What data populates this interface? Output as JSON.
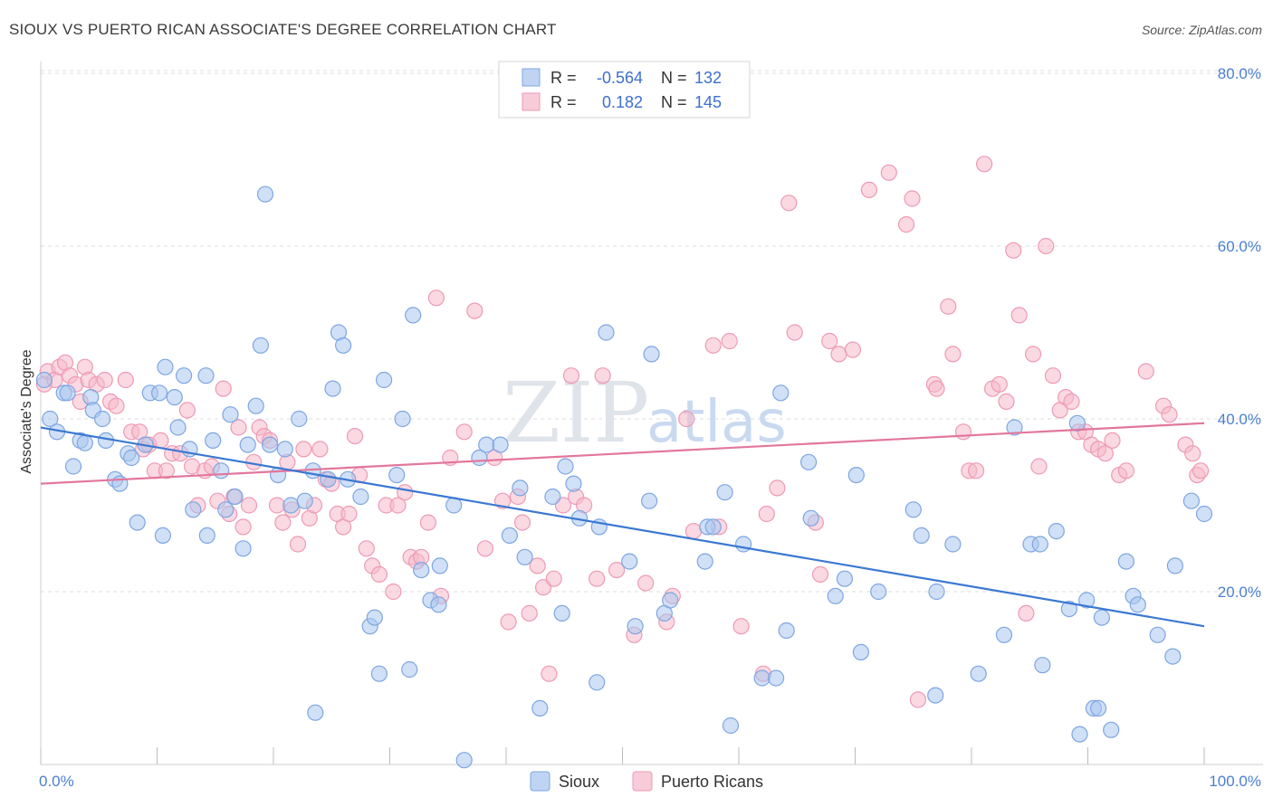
{
  "title": "SIOUX VS PUERTO RICAN ASSOCIATE'S DEGREE CORRELATION CHART",
  "source": "Source: ZipAtlas.com",
  "watermark": {
    "zip": "ZIP",
    "atlas": "atlas"
  },
  "colors": {
    "sioux_fill": "#a9c6ef",
    "sioux_stroke": "#7ea6e2",
    "sioux_line": "#3a78d2",
    "pr_fill": "#f6b9cb",
    "pr_stroke": "#ee9ab4",
    "pr_line": "#e2779c",
    "tick_text": "#4a7fd0",
    "grid": "#dcdcdc"
  },
  "legend": {
    "rows": [
      {
        "r_label": "R =",
        "r_value": "-0.564",
        "n_label": "N =",
        "n_value": "132"
      },
      {
        "r_label": "R =",
        "r_value": "0.182",
        "n_label": "N =",
        "n_value": "145"
      }
    ]
  },
  "chart_data": {
    "type": "scatter",
    "title": "SIOUX VS PUERTO RICAN ASSOCIATE'S DEGREE CORRELATION CHART",
    "xlabel": "",
    "ylabel": "Associate's Degree",
    "xlim": [
      0,
      100
    ],
    "ylim": [
      0,
      85
    ],
    "x_tick_labels": [
      "0.0%",
      "100.0%"
    ],
    "y_ticks": [
      20,
      40,
      60,
      80
    ],
    "y_tick_labels": [
      "20.0%",
      "40.0%",
      "60.0%",
      "80.0%"
    ],
    "grid": "horizontal dashed",
    "legend_position": "top-center",
    "series": [
      {
        "name": "Sioux",
        "r": -0.564,
        "n": 132,
        "trend": [
          [
            0,
            39.0
          ],
          [
            100,
            16.0
          ]
        ],
        "points": [
          [
            0.3,
            44.5
          ],
          [
            0.8,
            40.0
          ],
          [
            1.4,
            38.5
          ],
          [
            2.0,
            43.0
          ],
          [
            2.3,
            43.0
          ],
          [
            2.8,
            34.5
          ],
          [
            3.4,
            37.5
          ],
          [
            3.8,
            37.2
          ],
          [
            4.3,
            42.5
          ],
          [
            4.5,
            41.0
          ],
          [
            5.3,
            40.0
          ],
          [
            5.6,
            37.5
          ],
          [
            6.4,
            33.0
          ],
          [
            6.8,
            32.5
          ],
          [
            7.5,
            36.0
          ],
          [
            7.8,
            35.5
          ],
          [
            8.3,
            28.0
          ],
          [
            9.0,
            37.0
          ],
          [
            9.4,
            43.0
          ],
          [
            10.2,
            43.0
          ],
          [
            10.5,
            26.5
          ],
          [
            10.7,
            46.0
          ],
          [
            11.5,
            42.5
          ],
          [
            11.8,
            39.0
          ],
          [
            12.3,
            45.0
          ],
          [
            12.8,
            36.5
          ],
          [
            13.1,
            29.5
          ],
          [
            14.2,
            45.0
          ],
          [
            14.3,
            26.5
          ],
          [
            14.8,
            37.5
          ],
          [
            15.5,
            34.0
          ],
          [
            15.9,
            29.5
          ],
          [
            16.3,
            40.5
          ],
          [
            16.7,
            31.0
          ],
          [
            17.4,
            25.0
          ],
          [
            17.8,
            37.0
          ],
          [
            18.5,
            41.5
          ],
          [
            18.9,
            48.5
          ],
          [
            19.3,
            66.0
          ],
          [
            19.7,
            37.0
          ],
          [
            20.4,
            33.5
          ],
          [
            21.0,
            36.5
          ],
          [
            21.5,
            30.0
          ],
          [
            22.2,
            40.0
          ],
          [
            22.7,
            30.5
          ],
          [
            23.4,
            34.0
          ],
          [
            23.6,
            6.0
          ],
          [
            24.7,
            33.0
          ],
          [
            25.1,
            43.5
          ],
          [
            25.6,
            50.0
          ],
          [
            26.0,
            48.5
          ],
          [
            26.4,
            33.0
          ],
          [
            27.5,
            31.0
          ],
          [
            28.3,
            16.0
          ],
          [
            28.7,
            17.0
          ],
          [
            29.1,
            10.5
          ],
          [
            29.5,
            44.5
          ],
          [
            30.6,
            33.5
          ],
          [
            31.1,
            40.0
          ],
          [
            31.7,
            11.0
          ],
          [
            32.0,
            52.0
          ],
          [
            32.7,
            22.5
          ],
          [
            33.5,
            19.0
          ],
          [
            34.2,
            18.5
          ],
          [
            34.3,
            23.0
          ],
          [
            35.5,
            30.0
          ],
          [
            36.4,
            0.5
          ],
          [
            37.7,
            35.5
          ],
          [
            38.3,
            37.0
          ],
          [
            39.5,
            37.0
          ],
          [
            40.3,
            26.5
          ],
          [
            41.2,
            32.0
          ],
          [
            41.6,
            24.0
          ],
          [
            42.9,
            6.5
          ],
          [
            44.0,
            31.0
          ],
          [
            44.8,
            17.5
          ],
          [
            45.1,
            34.5
          ],
          [
            45.8,
            32.5
          ],
          [
            46.3,
            28.5
          ],
          [
            47.8,
            9.5
          ],
          [
            48.0,
            27.5
          ],
          [
            48.6,
            50.0
          ],
          [
            50.6,
            23.5
          ],
          [
            51.1,
            16.0
          ],
          [
            52.3,
            30.5
          ],
          [
            52.5,
            47.5
          ],
          [
            53.6,
            17.5
          ],
          [
            54.1,
            19.0
          ],
          [
            57.1,
            23.5
          ],
          [
            57.3,
            27.5
          ],
          [
            57.8,
            27.5
          ],
          [
            58.8,
            31.5
          ],
          [
            59.3,
            4.5
          ],
          [
            60.4,
            25.5
          ],
          [
            62.0,
            10.0
          ],
          [
            63.2,
            10.0
          ],
          [
            63.6,
            43.0
          ],
          [
            64.1,
            15.5
          ],
          [
            66.0,
            35.0
          ],
          [
            66.2,
            28.5
          ],
          [
            68.3,
            19.5
          ],
          [
            69.1,
            21.5
          ],
          [
            70.1,
            33.5
          ],
          [
            70.5,
            13.0
          ],
          [
            72.0,
            20.0
          ],
          [
            75.0,
            29.5
          ],
          [
            75.7,
            26.5
          ],
          [
            76.9,
            8.0
          ],
          [
            77.0,
            20.0
          ],
          [
            78.4,
            25.5
          ],
          [
            80.6,
            10.5
          ],
          [
            82.8,
            15.0
          ],
          [
            83.7,
            39.0
          ],
          [
            85.1,
            25.5
          ],
          [
            85.9,
            25.5
          ],
          [
            86.1,
            11.5
          ],
          [
            87.3,
            27.0
          ],
          [
            88.4,
            18.0
          ],
          [
            89.1,
            39.5
          ],
          [
            89.3,
            3.5
          ],
          [
            89.9,
            19.0
          ],
          [
            90.5,
            6.5
          ],
          [
            90.9,
            6.5
          ],
          [
            91.2,
            17.0
          ],
          [
            92.0,
            4.0
          ],
          [
            93.3,
            23.5
          ],
          [
            93.9,
            19.5
          ],
          [
            94.3,
            18.5
          ],
          [
            96.0,
            15.0
          ],
          [
            97.3,
            12.5
          ],
          [
            97.5,
            23.0
          ],
          [
            98.9,
            30.5
          ],
          [
            100.0,
            29.0
          ]
        ]
      },
      {
        "name": "Puerto Ricans",
        "r": 0.182,
        "n": 145,
        "trend": [
          [
            0,
            32.5
          ],
          [
            100,
            39.5
          ]
        ],
        "points": [
          [
            0.3,
            44.0
          ],
          [
            0.6,
            45.5
          ],
          [
            1.2,
            44.5
          ],
          [
            1.6,
            46.0
          ],
          [
            2.1,
            46.5
          ],
          [
            2.5,
            45.0
          ],
          [
            3.0,
            44.0
          ],
          [
            3.4,
            42.0
          ],
          [
            3.8,
            46.0
          ],
          [
            4.1,
            44.5
          ],
          [
            4.8,
            44.0
          ],
          [
            5.5,
            44.5
          ],
          [
            6.0,
            42.0
          ],
          [
            6.5,
            41.5
          ],
          [
            7.3,
            44.5
          ],
          [
            7.8,
            38.5
          ],
          [
            8.5,
            38.5
          ],
          [
            8.8,
            36.5
          ],
          [
            9.3,
            37.0
          ],
          [
            9.8,
            34.0
          ],
          [
            10.3,
            37.5
          ],
          [
            10.8,
            34.0
          ],
          [
            11.3,
            36.0
          ],
          [
            12.0,
            36.0
          ],
          [
            12.6,
            41.0
          ],
          [
            13.0,
            34.5
          ],
          [
            13.5,
            30.0
          ],
          [
            14.1,
            34.0
          ],
          [
            14.7,
            34.5
          ],
          [
            15.2,
            30.5
          ],
          [
            15.7,
            43.5
          ],
          [
            16.2,
            29.0
          ],
          [
            16.6,
            31.0
          ],
          [
            17.0,
            39.0
          ],
          [
            17.4,
            27.5
          ],
          [
            17.9,
            30.0
          ],
          [
            18.3,
            35.0
          ],
          [
            18.8,
            39.0
          ],
          [
            19.2,
            38.0
          ],
          [
            19.7,
            37.5
          ],
          [
            20.3,
            30.0
          ],
          [
            20.8,
            28.0
          ],
          [
            21.2,
            35.0
          ],
          [
            21.6,
            29.5
          ],
          [
            22.1,
            25.5
          ],
          [
            22.6,
            36.5
          ],
          [
            23.1,
            28.5
          ],
          [
            23.5,
            30.0
          ],
          [
            24.0,
            36.5
          ],
          [
            24.5,
            33.0
          ],
          [
            25.0,
            32.5
          ],
          [
            25.5,
            29.0
          ],
          [
            26.0,
            27.5
          ],
          [
            26.5,
            29.0
          ],
          [
            27.0,
            38.0
          ],
          [
            27.4,
            33.5
          ],
          [
            28.0,
            25.0
          ],
          [
            28.5,
            23.0
          ],
          [
            29.1,
            22.0
          ],
          [
            29.7,
            30.0
          ],
          [
            30.3,
            20.0
          ],
          [
            30.7,
            30.0
          ],
          [
            31.3,
            31.5
          ],
          [
            31.8,
            24.0
          ],
          [
            32.3,
            23.5
          ],
          [
            32.7,
            24.0
          ],
          [
            33.3,
            28.0
          ],
          [
            34.0,
            54.0
          ],
          [
            34.4,
            19.5
          ],
          [
            35.2,
            35.5
          ],
          [
            36.4,
            38.5
          ],
          [
            37.3,
            52.5
          ],
          [
            38.2,
            25.0
          ],
          [
            39.0,
            35.5
          ],
          [
            39.7,
            30.5
          ],
          [
            40.2,
            16.5
          ],
          [
            41.0,
            31.0
          ],
          [
            41.4,
            28.0
          ],
          [
            42.0,
            17.5
          ],
          [
            42.7,
            23.0
          ],
          [
            43.2,
            20.5
          ],
          [
            43.7,
            10.5
          ],
          [
            44.1,
            21.5
          ],
          [
            44.9,
            30.0
          ],
          [
            45.6,
            45.0
          ],
          [
            46.0,
            31.0
          ],
          [
            46.7,
            30.0
          ],
          [
            47.8,
            21.5
          ],
          [
            48.3,
            45.0
          ],
          [
            49.5,
            22.5
          ],
          [
            51.0,
            15.0
          ],
          [
            52.0,
            21.0
          ],
          [
            53.8,
            16.5
          ],
          [
            54.3,
            19.5
          ],
          [
            55.5,
            40.0
          ],
          [
            56.1,
            27.0
          ],
          [
            57.8,
            48.5
          ],
          [
            58.3,
            27.5
          ],
          [
            59.2,
            49.0
          ],
          [
            60.2,
            16.0
          ],
          [
            62.1,
            10.5
          ],
          [
            62.4,
            29.0
          ],
          [
            63.3,
            32.0
          ],
          [
            64.3,
            65.0
          ],
          [
            64.8,
            50.0
          ],
          [
            66.6,
            28.0
          ],
          [
            67.0,
            22.0
          ],
          [
            67.8,
            49.0
          ],
          [
            68.6,
            47.5
          ],
          [
            69.8,
            48.0
          ],
          [
            71.2,
            66.5
          ],
          [
            72.9,
            68.5
          ],
          [
            74.4,
            62.5
          ],
          [
            74.9,
            65.5
          ],
          [
            75.4,
            7.5
          ],
          [
            76.8,
            44.0
          ],
          [
            77.0,
            43.5
          ],
          [
            78.0,
            53.0
          ],
          [
            78.4,
            47.5
          ],
          [
            79.3,
            38.5
          ],
          [
            79.8,
            34.0
          ],
          [
            80.4,
            34.0
          ],
          [
            81.1,
            69.5
          ],
          [
            81.8,
            43.5
          ],
          [
            82.4,
            44.0
          ],
          [
            83.0,
            42.0
          ],
          [
            83.6,
            59.5
          ],
          [
            84.1,
            52.0
          ],
          [
            84.7,
            17.5
          ],
          [
            85.3,
            47.5
          ],
          [
            85.8,
            34.5
          ],
          [
            86.4,
            60.0
          ],
          [
            87.0,
            45.0
          ],
          [
            87.6,
            41.0
          ],
          [
            88.1,
            42.5
          ],
          [
            88.6,
            42.0
          ],
          [
            89.2,
            38.5
          ],
          [
            89.8,
            38.5
          ],
          [
            90.3,
            37.0
          ],
          [
            90.9,
            36.5
          ],
          [
            91.5,
            36.0
          ],
          [
            92.1,
            37.5
          ],
          [
            92.7,
            33.5
          ],
          [
            93.3,
            34.0
          ],
          [
            95.0,
            45.5
          ],
          [
            96.5,
            41.5
          ],
          [
            97.0,
            40.5
          ],
          [
            98.4,
            37.0
          ],
          [
            99.0,
            36.0
          ],
          [
            99.4,
            33.5
          ],
          [
            99.7,
            34.0
          ]
        ]
      }
    ]
  }
}
